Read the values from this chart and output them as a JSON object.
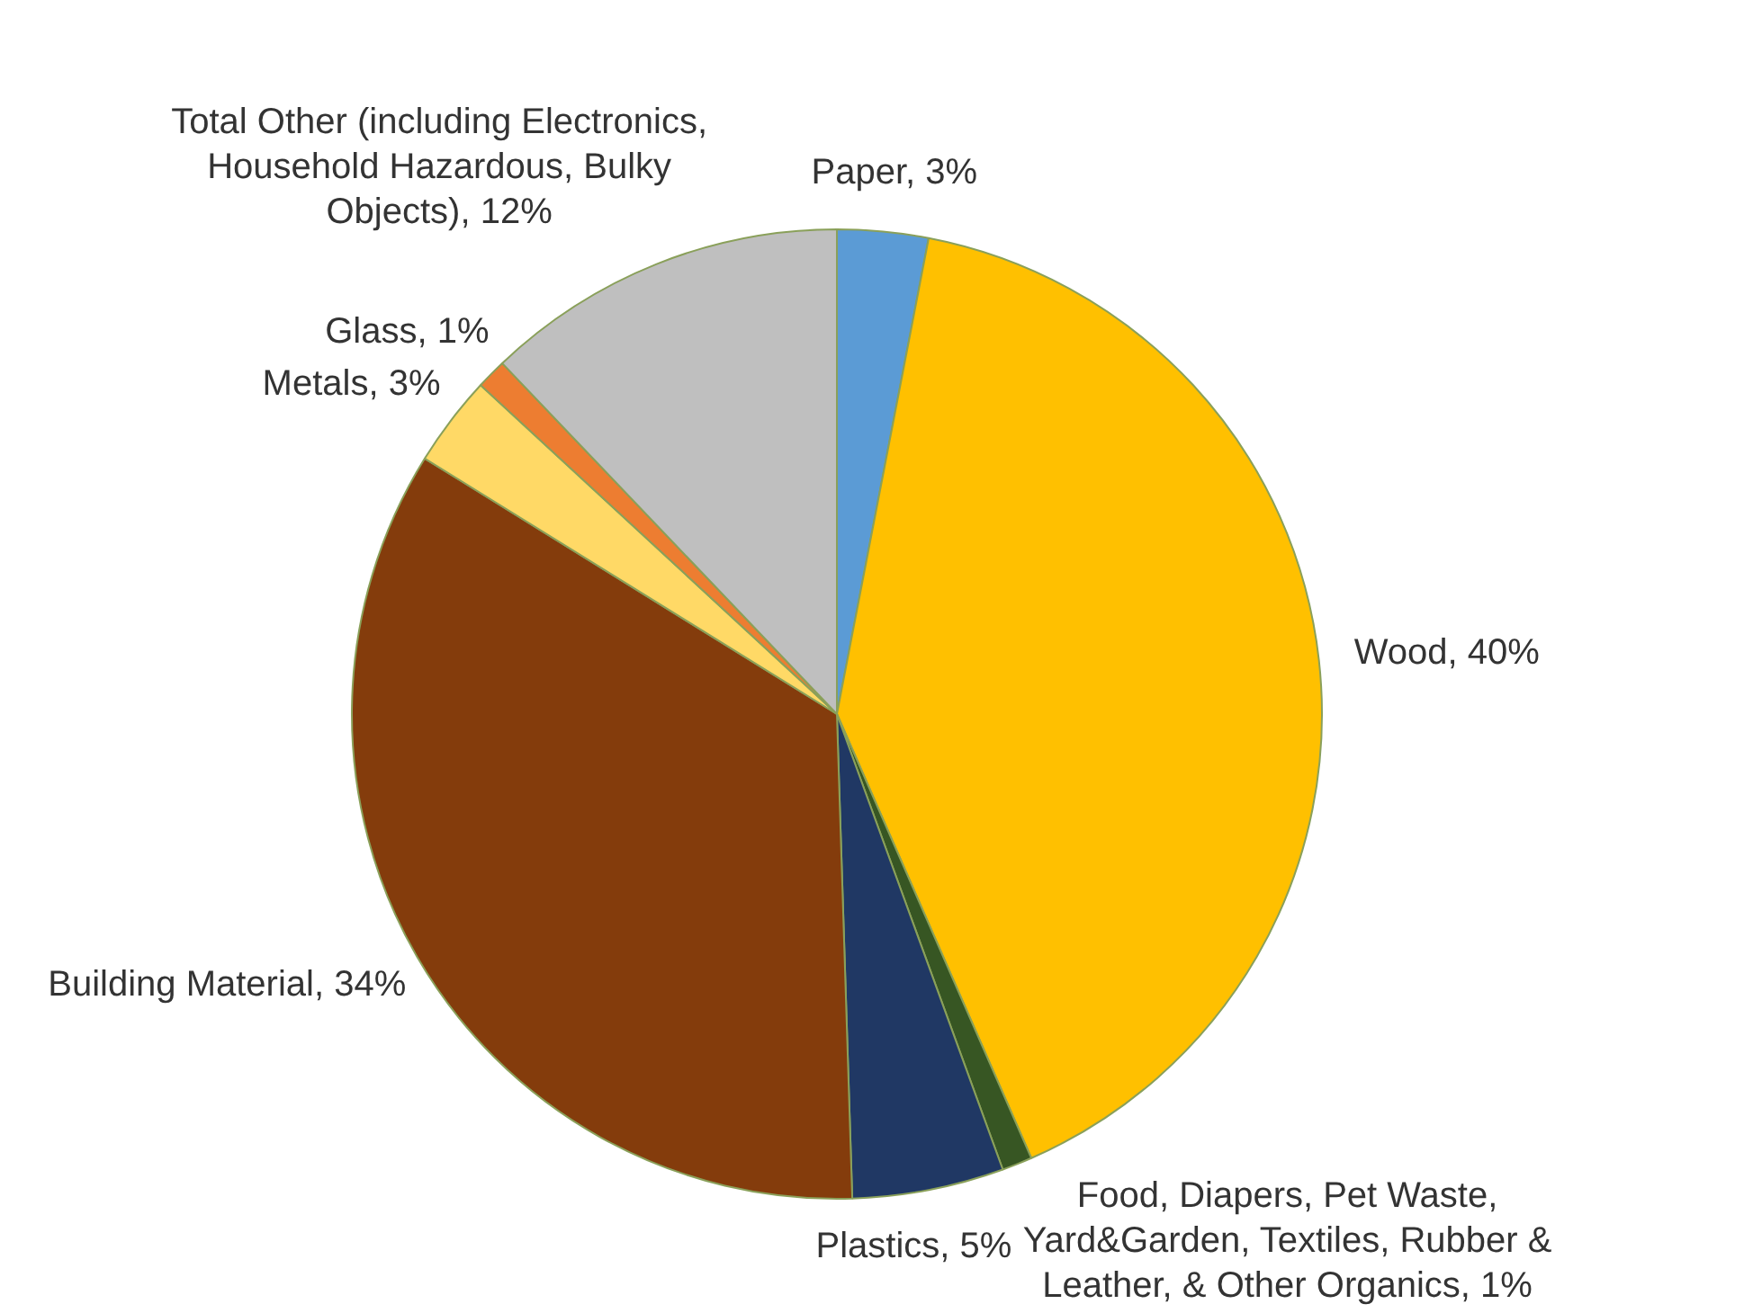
{
  "chart_data": {
    "type": "pie",
    "categories": [
      "Paper",
      "Wood",
      "Food, Diapers, Pet Waste, Yard&Garden, Textiles, Rubber & Leather, & Other Organics",
      "Plastics",
      "Building Material",
      "Metals",
      "Glass",
      "Total Other (including Electronics, Household Hazardous, Bulky Objects)"
    ],
    "values": [
      3,
      40,
      1,
      5,
      34,
      3,
      1,
      12
    ],
    "value_labels": [
      "3%",
      "40%",
      "1%",
      "5%",
      "34%",
      "3%",
      "1%",
      "12%"
    ],
    "colors": [
      "#5b9bd5",
      "#ffc000",
      "#375623",
      "#203864",
      "#843c0c",
      "#ffd966",
      "#ed7d31",
      "#bfbfbf"
    ],
    "legend": false
  }
}
